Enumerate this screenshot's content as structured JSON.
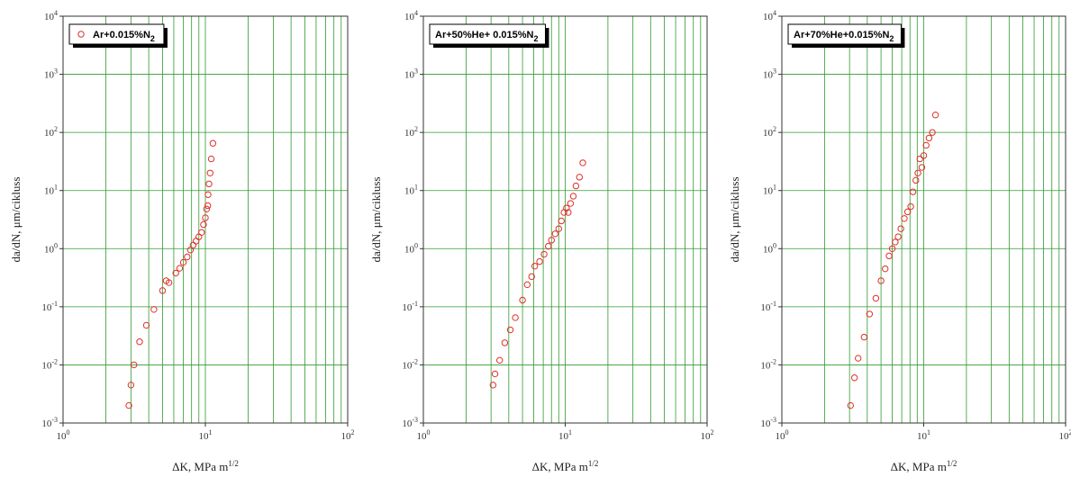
{
  "chart_data": [
    {
      "type": "scatter",
      "xscale": "log",
      "yscale": "log",
      "xlim": [
        1,
        100
      ],
      "ylim": [
        0.001,
        10000
      ],
      "grid": true,
      "xlabel": "ΔK, MPa m^1/2",
      "ylabel": "da/dN, μm/cikluss",
      "legend": {
        "placement": "top-left",
        "label_main": "Ar+0.015%N",
        "label_sub": "2"
      },
      "x_ticks": [
        "10^0",
        "10^1",
        "10^2"
      ],
      "y_ticks": [
        "10^-3",
        "10^-2",
        "10^-1",
        "10^0",
        "10^1",
        "10^2",
        "10^3",
        "10^4"
      ],
      "series": [
        {
          "marker": "circle-open",
          "color": "#e0302a",
          "points": [
            [
              2.9,
              0.002
            ],
            [
              3.0,
              0.0045
            ],
            [
              3.15,
              0.01
            ],
            [
              3.45,
              0.025
            ],
            [
              3.85,
              0.048
            ],
            [
              4.35,
              0.09
            ],
            [
              5.0,
              0.19
            ],
            [
              5.3,
              0.28
            ],
            [
              5.55,
              0.26
            ],
            [
              6.2,
              0.38
            ],
            [
              6.6,
              0.46
            ],
            [
              7.0,
              0.58
            ],
            [
              7.45,
              0.72
            ],
            [
              7.85,
              0.95
            ],
            [
              8.2,
              1.15
            ],
            [
              8.6,
              1.35
            ],
            [
              9.0,
              1.6
            ],
            [
              9.4,
              1.9
            ],
            [
              9.7,
              2.6
            ],
            [
              10.0,
              3.4
            ],
            [
              10.2,
              4.8
            ],
            [
              10.4,
              5.5
            ],
            [
              10.45,
              8.5
            ],
            [
              10.6,
              13
            ],
            [
              10.8,
              20
            ],
            [
              11.0,
              35
            ],
            [
              11.3,
              65
            ]
          ]
        }
      ]
    },
    {
      "type": "scatter",
      "xscale": "log",
      "yscale": "log",
      "xlim": [
        1,
        100
      ],
      "ylim": [
        0.001,
        10000
      ],
      "grid": true,
      "xlabel": "ΔK, MPa m^1/2",
      "ylabel": "da/dN, μm/cikluss",
      "legend": {
        "placement": "top-left",
        "label_main": "Ar+50%He+ 0.015%N",
        "label_sub": "2"
      },
      "x_ticks": [
        "10^0",
        "10^1",
        "10^2"
      ],
      "y_ticks": [
        "10^-3",
        "10^-2",
        "10^-1",
        "10^0",
        "10^1",
        "10^2",
        "10^3",
        "10^4"
      ],
      "series": [
        {
          "marker": "circle-open",
          "color": "#e0302a",
          "points": [
            [
              3.1,
              0.0045
            ],
            [
              3.2,
              0.007
            ],
            [
              3.45,
              0.012
            ],
            [
              3.75,
              0.024
            ],
            [
              4.1,
              0.04
            ],
            [
              4.45,
              0.065
            ],
            [
              5.0,
              0.13
            ],
            [
              5.4,
              0.24
            ],
            [
              5.8,
              0.33
            ],
            [
              6.1,
              0.5
            ],
            [
              6.6,
              0.6
            ],
            [
              7.1,
              0.8
            ],
            [
              7.6,
              1.1
            ],
            [
              8.0,
              1.4
            ],
            [
              8.5,
              1.8
            ],
            [
              9.0,
              2.2
            ],
            [
              9.4,
              3.0
            ],
            [
              9.8,
              4.2
            ],
            [
              10.2,
              5.0
            ],
            [
              10.5,
              4.2
            ],
            [
              10.9,
              6.0
            ],
            [
              11.4,
              8.0
            ],
            [
              11.9,
              12
            ],
            [
              12.6,
              17
            ],
            [
              13.3,
              30
            ]
          ]
        }
      ]
    },
    {
      "type": "scatter",
      "xscale": "log",
      "yscale": "log",
      "xlim": [
        1,
        100
      ],
      "ylim": [
        0.001,
        10000
      ],
      "grid": true,
      "xlabel": "ΔK, MPa m^1/2",
      "ylabel": "da/dN, μm/cikluss",
      "legend": {
        "placement": "top-left",
        "label_main": "Ar+70%He+0.015%N",
        "label_sub": "2"
      },
      "x_ticks": [
        "10^0",
        "10^1",
        "10^2"
      ],
      "y_ticks": [
        "10^-3",
        "10^-2",
        "10^-1",
        "10^0",
        "10^1",
        "10^2",
        "10^3",
        "10^4"
      ],
      "series": [
        {
          "marker": "circle-open",
          "color": "#e0302a",
          "points": [
            [
              3.05,
              0.002
            ],
            [
              3.25,
              0.006
            ],
            [
              3.45,
              0.013
            ],
            [
              3.8,
              0.03
            ],
            [
              4.15,
              0.075
            ],
            [
              4.6,
              0.14
            ],
            [
              5.0,
              0.28
            ],
            [
              5.35,
              0.45
            ],
            [
              5.7,
              0.75
            ],
            [
              6.0,
              1.0
            ],
            [
              6.3,
              1.3
            ],
            [
              6.6,
              1.6
            ],
            [
              6.9,
              2.2
            ],
            [
              7.3,
              3.3
            ],
            [
              7.7,
              4.3
            ],
            [
              8.1,
              5.3
            ],
            [
              8.4,
              9.5
            ],
            [
              8.8,
              15
            ],
            [
              9.1,
              20
            ],
            [
              9.4,
              35
            ],
            [
              9.7,
              25
            ],
            [
              10.0,
              40
            ],
            [
              10.4,
              60
            ],
            [
              10.9,
              80
            ],
            [
              11.5,
              100
            ],
            [
              12.1,
              200
            ]
          ]
        }
      ]
    }
  ]
}
